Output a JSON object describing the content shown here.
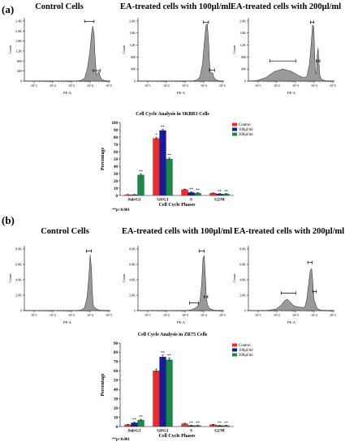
{
  "panels": [
    {
      "label": "(a)",
      "histograms": [
        {
          "title": "Control Cells",
          "yaxis_label": "Count",
          "xaxis_label": "PE-A",
          "yticks": [
            "0",
            "400",
            "800",
            "1.2K",
            "1.6K",
            "2.0K",
            "2.4K"
          ],
          "ymax": 2700,
          "xticks": [
            "10^1",
            "10^2",
            "10^3",
            "10^4",
            "10^5"
          ],
          "profile": [
            [
              0,
              0
            ],
            [
              60,
              0
            ],
            [
              66,
              30
            ],
            [
              70,
              120
            ],
            [
              73,
              500
            ],
            [
              76,
              1200
            ],
            [
              78,
              2000
            ],
            [
              79.5,
              2350
            ],
            [
              81,
              2000
            ],
            [
              82,
              1200
            ],
            [
              83,
              600
            ],
            [
              84,
              250
            ],
            [
              85,
              300
            ],
            [
              86,
              400
            ],
            [
              87,
              380
            ],
            [
              88,
              200
            ],
            [
              90,
              80
            ],
            [
              93,
              20
            ],
            [
              100,
              0
            ]
          ],
          "gates": [
            [
              70,
              81,
              2550
            ],
            [
              80,
              88,
              450
            ]
          ]
        },
        {
          "title": "EA-treated cells with 100µl/ml",
          "yaxis_label": "Count",
          "xaxis_label": "PE-A",
          "yticks": [
            "0",
            "400",
            "800",
            "1.2K",
            "1.6K",
            "2.0K"
          ],
          "ymax": 2200,
          "xticks": [
            "10^1",
            "10^2",
            "10^3",
            "10^4",
            "10^5"
          ],
          "profile": [
            [
              0,
              0
            ],
            [
              62,
              0
            ],
            [
              68,
              30
            ],
            [
              72,
              150
            ],
            [
              75,
              600
            ],
            [
              77,
              1300
            ],
            [
              79,
              1950
            ],
            [
              80.5,
              2000
            ],
            [
              82,
              1400
            ],
            [
              83,
              700
            ],
            [
              84,
              320
            ],
            [
              85,
              280
            ],
            [
              86,
              300
            ],
            [
              87,
              280
            ],
            [
              88,
              150
            ],
            [
              90,
              60
            ],
            [
              94,
              10
            ],
            [
              100,
              0
            ]
          ],
          "gates": [
            [
              76,
              82,
              2050
            ],
            [
              83,
              89,
              380
            ]
          ]
        },
        {
          "title": "EA-treated cells with 200µl/ml",
          "yaxis_label": "Count",
          "xaxis_label": "PE-A",
          "yticks": [
            "0",
            "400",
            "800",
            "1.2K",
            "1.6K",
            "2.0K"
          ],
          "ymax": 2200,
          "xticks": [
            "10^1",
            "10^2",
            "10^3",
            "10^4",
            "10^5"
          ],
          "profile": [
            [
              0,
              0
            ],
            [
              10,
              20
            ],
            [
              20,
              120
            ],
            [
              30,
              330
            ],
            [
              40,
              420
            ],
            [
              50,
              340
            ],
            [
              58,
              200
            ],
            [
              64,
              120
            ],
            [
              68,
              160
            ],
            [
              71,
              600
            ],
            [
              73,
              1300
            ],
            [
              74.5,
              1950
            ],
            [
              76,
              1900
            ],
            [
              77,
              900
            ],
            [
              78,
              300
            ],
            [
              79,
              250
            ],
            [
              80,
              900
            ],
            [
              81,
              1150
            ],
            [
              82,
              600
            ],
            [
              83,
              200
            ],
            [
              85,
              60
            ],
            [
              90,
              10
            ],
            [
              100,
              0
            ]
          ],
          "gates": [
            [
              25,
              55,
              700
            ],
            [
              72,
              76,
              2050
            ],
            [
              79,
              83,
              700
            ]
          ]
        }
      ],
      "bar_chart": {
        "title": "Cell Cycle Analysis in SKBR3 Cells",
        "xlabel": "Cell Cycle Phases",
        "ylabel": "Percentage",
        "yticks": [
          "0",
          "10",
          "20",
          "30",
          "40",
          "50",
          "60",
          "70",
          "80",
          "90",
          "100"
        ],
        "footnote": "**p<0.001"
      }
    },
    {
      "label": "(b)",
      "histograms": [
        {
          "title": "Control Cells",
          "yaxis_label": "Count",
          "xaxis_label": "PE-A",
          "yticks": [
            "0",
            "2.0K",
            "4.0K",
            "6.0K",
            "8.0K"
          ],
          "ymax": 8500,
          "xticks": [
            "10^1",
            "10^2",
            "10^3",
            "10^4",
            "10^5"
          ],
          "profile": [
            [
              0,
              0
            ],
            [
              60,
              0
            ],
            [
              66,
              80
            ],
            [
              70,
              400
            ],
            [
              73,
              1800
            ],
            [
              75,
              4500
            ],
            [
              76.5,
              7300
            ],
            [
              78,
              5500
            ],
            [
              79,
              2500
            ],
            [
              80,
              800
            ],
            [
              81,
              500
            ],
            [
              82,
              400
            ],
            [
              84,
              200
            ],
            [
              88,
              50
            ],
            [
              100,
              0
            ]
          ],
          "gates": [
            [
              72,
              78,
              7800
            ]
          ]
        },
        {
          "title": "EA-treated cells with 100µl/ml",
          "yaxis_label": "Count",
          "xaxis_label": "PE-A",
          "yticks": [
            "0",
            "2.0K",
            "4.0K",
            "6.0K",
            "8.0K"
          ],
          "ymax": 8500,
          "xticks": [
            "10^1",
            "10^2",
            "10^3",
            "10^4",
            "10^5"
          ],
          "profile": [
            [
              0,
              0
            ],
            [
              55,
              0
            ],
            [
              62,
              100
            ],
            [
              66,
              300
            ],
            [
              69,
              500
            ],
            [
              72,
              1200
            ],
            [
              74,
              3500
            ],
            [
              75.5,
              6800
            ],
            [
              77,
              7200
            ],
            [
              78.5,
              4000
            ],
            [
              79.5,
              1500
            ],
            [
              81,
              700
            ],
            [
              83,
              300
            ],
            [
              88,
              50
            ],
            [
              100,
              0
            ]
          ],
          "gates": [
            [
              60,
              70,
              1000
            ],
            [
              71,
              77,
              7800
            ],
            [
              77,
              81,
              1800
            ]
          ]
        },
        {
          "title": "EA-treated cells with 200µl/ml",
          "yaxis_label": "Count",
          "xaxis_label": "PE-A",
          "yticks": [
            "0",
            "2.0K",
            "4.0K",
            "6.0K",
            "8.0K"
          ],
          "ymax": 8500,
          "xticks": [
            "10^1",
            "10^2",
            "10^3",
            "10^4",
            "10^5"
          ],
          "profile": [
            [
              0,
              0
            ],
            [
              20,
              0
            ],
            [
              32,
              200
            ],
            [
              38,
              700
            ],
            [
              42,
              1300
            ],
            [
              45,
              1500
            ],
            [
              48,
              1200
            ],
            [
              52,
              700
            ],
            [
              56,
              500
            ],
            [
              60,
              450
            ],
            [
              64,
              400
            ],
            [
              66,
              600
            ],
            [
              68,
              1600
            ],
            [
              70,
              3500
            ],
            [
              72,
              5300
            ],
            [
              73.5,
              5500
            ],
            [
              75,
              3500
            ],
            [
              76,
              1600
            ],
            [
              77,
              1200
            ],
            [
              78,
              900
            ],
            [
              79,
              500
            ],
            [
              81,
              200
            ],
            [
              85,
              50
            ],
            [
              100,
              0
            ]
          ],
          "gates": [
            [
              38,
              55,
              2300
            ],
            [
              69,
              74,
              6300
            ],
            [
              75,
              79,
              2500
            ]
          ]
        }
      ],
      "bar_chart": {
        "title": "Cell Cycle Analysis in ZR75 Cells",
        "xlabel": "Cell Cycle Phases",
        "ylabel": "Percentage",
        "yticks": [
          "0",
          "10",
          "20",
          "30",
          "40",
          "50",
          "60",
          "70",
          "80",
          "90"
        ],
        "footnote": "**p<0.001"
      }
    }
  ],
  "chart_data": [
    {
      "type": "bar",
      "title": "Cell Cycle Analysis in SKBR3 Cells",
      "xlabel": "Cell Cycle Phases",
      "ylabel": "Percentage",
      "ylim": [
        0,
        100
      ],
      "categories": [
        "Sub/G1",
        "G0/G1",
        "S",
        "G2/M"
      ],
      "series": [
        {
          "name": "Control",
          "color": "#ee2a2a",
          "values": [
            1,
            78,
            8,
            3
          ],
          "errors": [
            0.3,
            1.5,
            0.8,
            0.5
          ],
          "markers": [
            "",
            "*",
            "",
            ""
          ]
        },
        {
          "name": "100µl/ml",
          "color": "#1a1a9a",
          "values": [
            1,
            89,
            4,
            2
          ],
          "errors": [
            0.3,
            1.5,
            0.8,
            0.5
          ],
          "markers": [
            "",
            "**",
            "**",
            "**"
          ]
        },
        {
          "name": "200µl/ml",
          "color": "#1a8a4a",
          "values": [
            28,
            50,
            3,
            2
          ],
          "errors": [
            1.5,
            1.5,
            0.8,
            0.5
          ],
          "markers": [
            "**",
            "**",
            "**",
            "**"
          ]
        }
      ],
      "legend": "top-right"
    },
    {
      "type": "bar",
      "title": "Cell Cycle Analysis in ZR75 Cells",
      "xlabel": "Cell Cycle Phases",
      "ylabel": "Percentage",
      "ylim": [
        0,
        90
      ],
      "categories": [
        "Sub/G1",
        "G0/G1",
        "S",
        "G2/M"
      ],
      "series": [
        {
          "name": "Control",
          "color": "#ee2a2a",
          "values": [
            2,
            60,
            3,
            2
          ],
          "errors": [
            0.4,
            2,
            0.6,
            0.4
          ],
          "markers": [
            "",
            "",
            "",
            ""
          ]
        },
        {
          "name": "100µl/ml",
          "color": "#1a1a9a",
          "values": [
            4,
            75,
            1,
            1
          ],
          "errors": [
            0.6,
            2,
            0.4,
            0.3
          ],
          "markers": [
            "**",
            "**",
            "**",
            "**"
          ]
        },
        {
          "name": "200µl/ml",
          "color": "#1a8a4a",
          "values": [
            7,
            72,
            1,
            1
          ],
          "errors": [
            0.8,
            2,
            0.4,
            0.3
          ],
          "markers": [
            "**",
            "**",
            "**",
            "**"
          ]
        }
      ],
      "legend": "top-right"
    }
  ]
}
